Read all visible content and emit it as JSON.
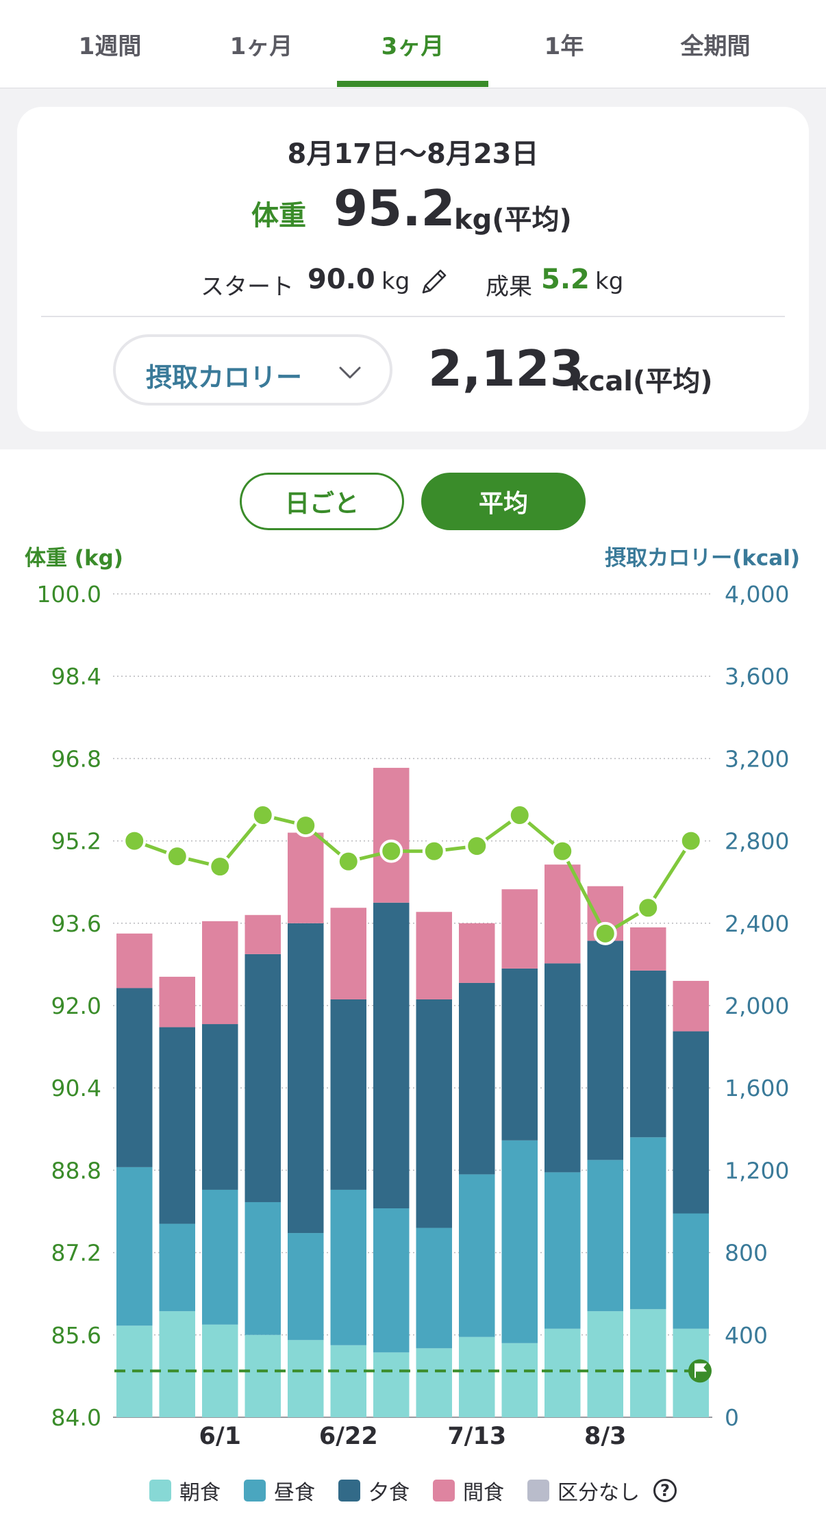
{
  "tabs": [
    {
      "label": "1週間"
    },
    {
      "label": "1ヶ月"
    },
    {
      "label": "3ヶ月"
    },
    {
      "label": "1年"
    },
    {
      "label": "全期間"
    }
  ],
  "summary": {
    "date_range": "8月17日〜8月23日",
    "weight_label": "体重",
    "weight_value": "95.2",
    "weight_unit": "kg(平均)",
    "start_label": "スタート",
    "start_value": "90.0",
    "start_unit": "kg",
    "result_label": "成果",
    "result_value": "5.2",
    "result_unit": "kg",
    "calorie_selector": "摂取カロリー",
    "calorie_value": "2,123",
    "calorie_unit": "kcal(平均)"
  },
  "mode_buttons": {
    "daily": "日ごと",
    "average": "平均"
  },
  "colors": {
    "accent_green": "#3a8c2a",
    "accent_blue": "#3a7a99",
    "breakfast": "#87d8d5",
    "lunch": "#4aa6bf",
    "dinner": "#326a88",
    "snack": "#de84a0",
    "none": "#b9bccb",
    "weight_line": "#80c83c"
  },
  "chart_data": {
    "type": "bar",
    "ylabel_left": "体重 (kg)",
    "ylabel_right": "摂取カロリー(kcal)",
    "left_ticks": [
      "100.0",
      "98.4",
      "96.8",
      "95.2",
      "93.6",
      "92.0",
      "90.4",
      "88.8",
      "87.2",
      "85.6",
      "84.0"
    ],
    "right_ticks": [
      "4,000",
      "3,600",
      "3,200",
      "2,800",
      "2,400",
      "2,000",
      "1,600",
      "1,200",
      "800",
      "400",
      "0"
    ],
    "ylim_left": [
      84.0,
      100.0
    ],
    "ylim_right": [
      0,
      4000
    ],
    "x_tick_labels": [
      {
        "label": "6/1",
        "index": 2
      },
      {
        "label": "6/22",
        "index": 5
      },
      {
        "label": "7/13",
        "index": 8
      },
      {
        "label": "8/3",
        "index": 11
      }
    ],
    "bar_series": [
      {
        "name": "朝食",
        "values": [
          445,
          515,
          450,
          400,
          375,
          350,
          315,
          335,
          390,
          360,
          430,
          515,
          525,
          430
        ]
      },
      {
        "name": "昼食",
        "values": [
          770,
          425,
          655,
          645,
          520,
          755,
          700,
          585,
          790,
          985,
          760,
          735,
          835,
          560
        ]
      },
      {
        "name": "夕食",
        "values": [
          870,
          955,
          805,
          1205,
          1505,
          925,
          1485,
          1110,
          930,
          835,
          1015,
          1065,
          810,
          885
        ]
      },
      {
        "name": "間食",
        "values": [
          265,
          245,
          500,
          190,
          440,
          445,
          655,
          425,
          290,
          385,
          480,
          265,
          210,
          245
        ]
      }
    ],
    "weight_series": {
      "name": "体重",
      "values": [
        95.2,
        94.9,
        94.7,
        95.7,
        95.5,
        94.8,
        95.0,
        95.0,
        95.1,
        95.7,
        95.0,
        93.4,
        93.9,
        95.2
      ]
    },
    "goal_weight": 84.9,
    "legend": [
      "朝食",
      "昼食",
      "夕食",
      "間食",
      "区分なし"
    ],
    "legend_help": "?"
  }
}
